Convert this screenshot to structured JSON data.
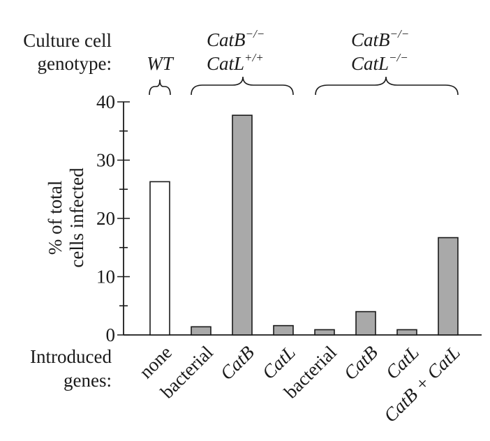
{
  "chart_data": {
    "type": "bar",
    "header": {
      "culture_label_line1": "Culture cell",
      "culture_label_line2": "genotype:",
      "groups": [
        {
          "line1": "WT",
          "line1_sup": "",
          "line2": "",
          "line2_sup": ""
        },
        {
          "line1": "CatB",
          "line1_sup": "−/−",
          "line2": "CatL",
          "line2_sup": "+/+"
        },
        {
          "line1": "CatB",
          "line1_sup": "−/−",
          "line2": "CatL",
          "line2_sup": "−/−"
        }
      ]
    },
    "ylabel_line1": "% of total",
    "ylabel_line2": "cells infected",
    "ylim": [
      0,
      40
    ],
    "yticks": [
      "0",
      "10",
      "20",
      "30",
      "40"
    ],
    "xlabel_line1": "Introduced",
    "xlabel_line2": "genes:",
    "categories": [
      "none",
      "bacterial",
      "CatB",
      "CatL",
      "bacterial",
      "CatB",
      "CatL",
      "CatB + CatL"
    ],
    "values": [
      26.3,
      1.4,
      37.7,
      1.6,
      0.9,
      4.0,
      0.9,
      16.7
    ],
    "bar_fill": [
      "#ffffff",
      "#a9a9a9",
      "#a9a9a9",
      "#a9a9a9",
      "#a9a9a9",
      "#a9a9a9",
      "#a9a9a9",
      "#a9a9a9"
    ],
    "italic_categories": [
      false,
      false,
      true,
      true,
      false,
      true,
      true,
      true
    ],
    "grid": false
  }
}
